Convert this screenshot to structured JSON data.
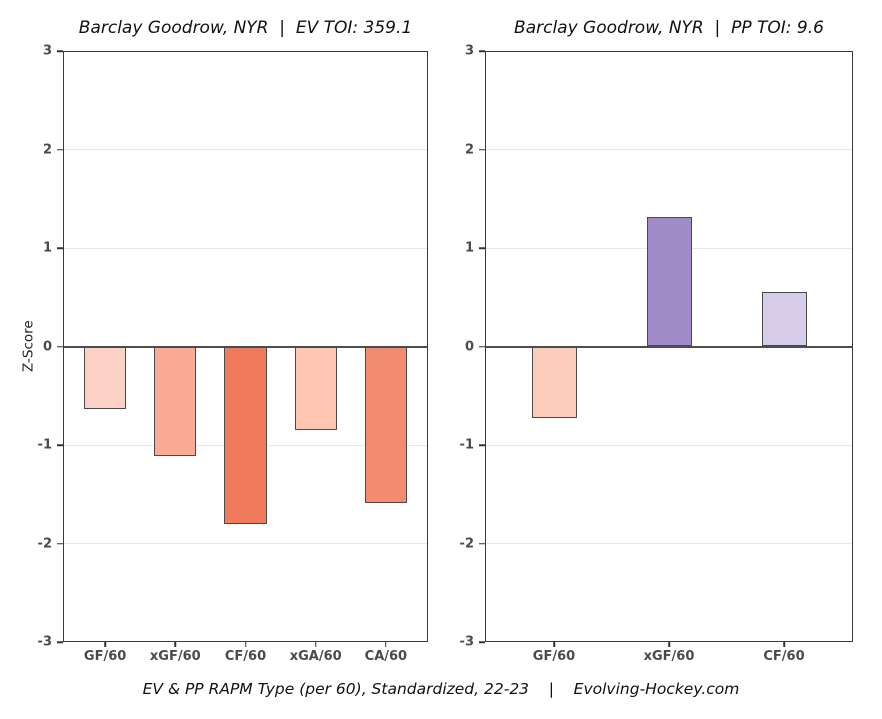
{
  "caption": "EV & PP RAPM Type (per 60), Standardized, 22-23    |    Evolving-Hockey.com",
  "chart_data": [
    {
      "type": "bar",
      "title": "Barclay Goodrow, NYR  |  EV TOI: 359.1",
      "xlabel": "",
      "ylabel": "Z-Score",
      "ylim": [
        -3,
        3
      ],
      "yticks": [
        3,
        2,
        1,
        0,
        -1,
        -2,
        -3
      ],
      "grid": true,
      "legend": "none",
      "categories": [
        "GF/60",
        "xGF/60",
        "CF/60",
        "xGA/60",
        "CA/60"
      ],
      "values": [
        -0.63,
        -1.11,
        -1.8,
        -0.85,
        -1.59
      ],
      "bar_colors": [
        "#fcd1c5",
        "#fbab95",
        "#ef7b5c",
        "#fec6b3",
        "#f38b70"
      ],
      "bar_edge_color": "#4a4a4a",
      "gridline_color": "#e7e7e7",
      "zero_line_color": "#4d4d4d"
    },
    {
      "type": "bar",
      "title": "Barclay Goodrow, NYR  |  PP TOI: 9.6",
      "xlabel": "",
      "ylabel": "",
      "ylim": [
        -3,
        3
      ],
      "yticks": [
        3,
        2,
        1,
        0,
        -1,
        -2,
        -3
      ],
      "grid": true,
      "legend": "none",
      "categories": [
        "GF/60",
        "xGF/60",
        "CF/60"
      ],
      "values": [
        -0.73,
        1.31,
        0.55
      ],
      "bar_colors": [
        "#fccdbd",
        "#a18cc9",
        "#d7cdea"
      ],
      "bar_edge_color": "#4a4a4a",
      "gridline_color": "#e7e7e7",
      "zero_line_color": "#4d4d4d"
    }
  ]
}
